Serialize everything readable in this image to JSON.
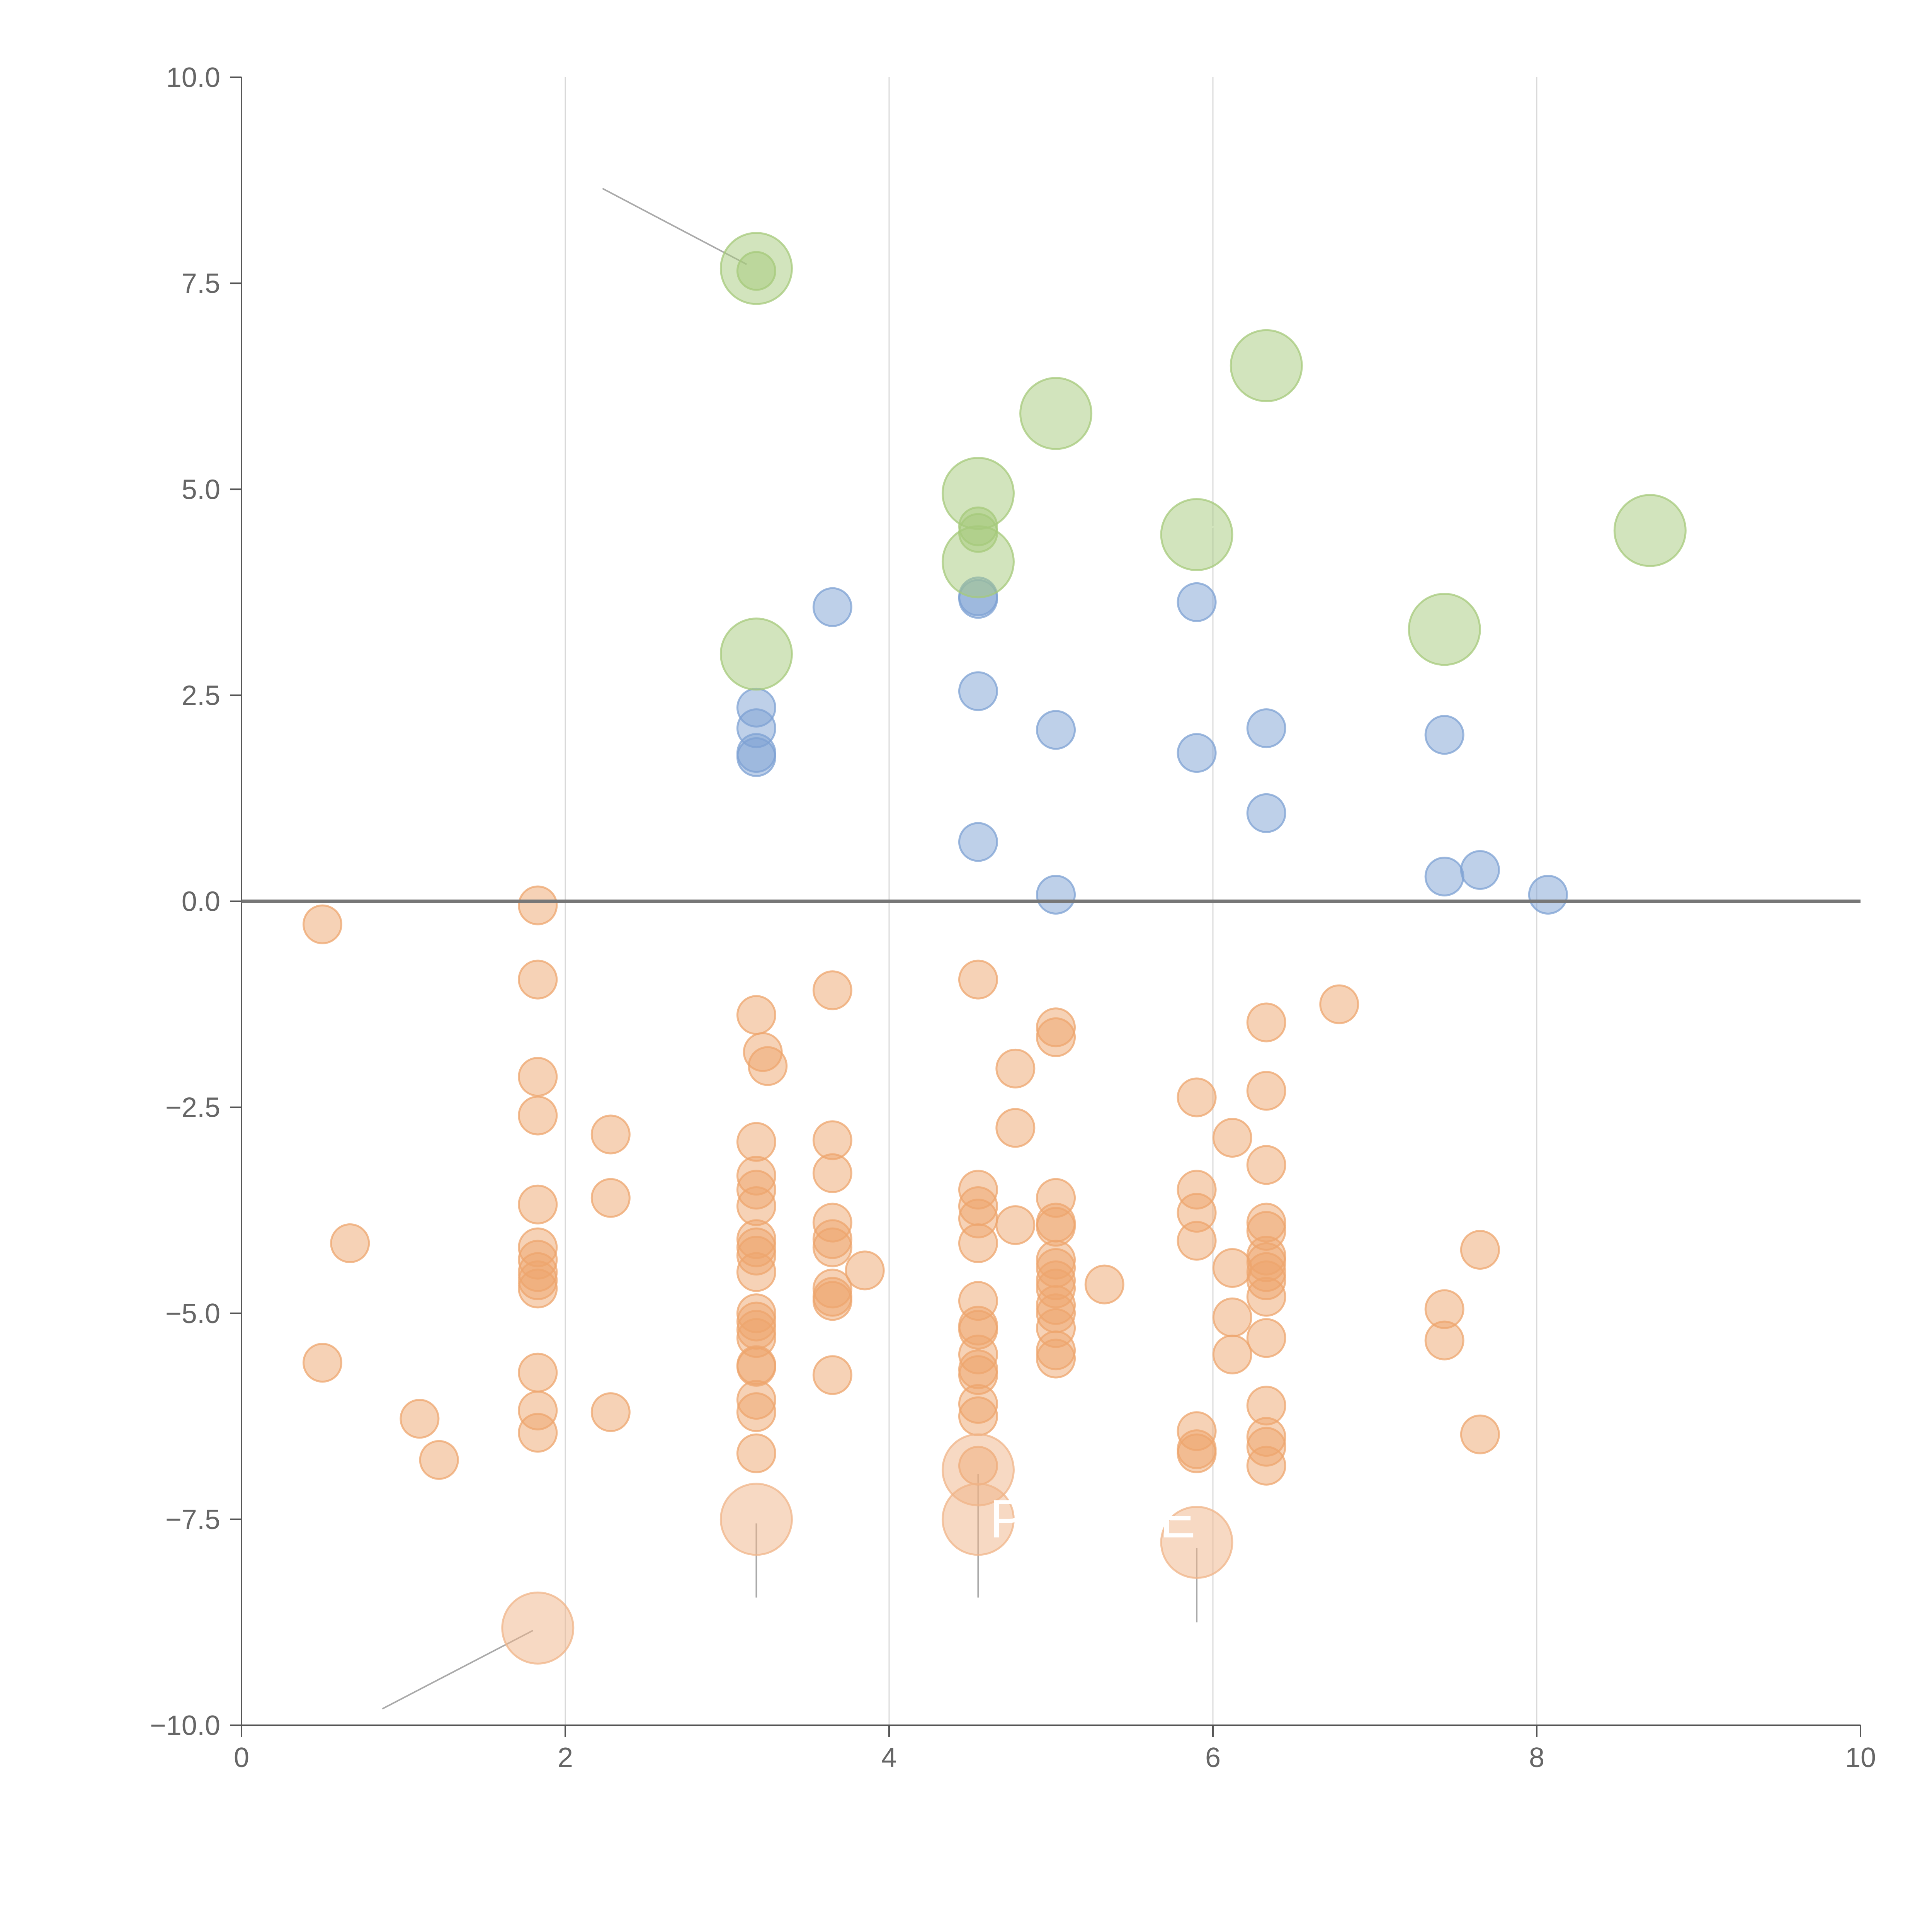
{
  "chart_data": {
    "type": "scatter",
    "title": "",
    "xlabel": "",
    "ylabel": "",
    "xlim": [
      0,
      10
    ],
    "ylim": [
      -10,
      10
    ],
    "grid": "vertical",
    "xticks": [
      0,
      2,
      4,
      6,
      8,
      10
    ],
    "xtick_labels": [
      "0",
      "2",
      "4",
      "6",
      "8",
      "10"
    ],
    "yticks": [
      -10,
      -7.5,
      -5,
      -2.5,
      0,
      2.5,
      5,
      7.5,
      10
    ],
    "ytick_labels": [
      "−10.0",
      "−7.5",
      "−5.0",
      "−2.5",
      "0.0",
      "2.5",
      "5.0",
      "7.5",
      "10.0"
    ],
    "colors": {
      "blue": "#7ea2d3",
      "green": "#a6c97b",
      "orange": "#eea56e",
      "orange_big": "#f0b488",
      "leader_gray": "#aaaaaa",
      "leader_white": "#ffffff"
    },
    "series": [
      {
        "name": "blue",
        "color": "#7ea2d3",
        "size": "small",
        "points": [
          [
            3.18,
            2.35
          ],
          [
            3.18,
            2.1
          ],
          [
            3.18,
            1.8
          ],
          [
            3.18,
            1.75
          ],
          [
            3.65,
            3.57
          ],
          [
            4.55,
            3.7
          ],
          [
            4.55,
            3.67
          ],
          [
            4.55,
            2.55
          ],
          [
            4.55,
            0.72
          ],
          [
            5.03,
            2.08
          ],
          [
            5.03,
            0.08
          ],
          [
            5.9,
            3.63
          ],
          [
            5.9,
            1.8
          ],
          [
            6.33,
            2.1
          ],
          [
            6.33,
            1.07
          ],
          [
            7.43,
            2.02
          ],
          [
            7.43,
            0.3
          ],
          [
            7.65,
            0.38
          ],
          [
            8.07,
            0.08
          ]
        ]
      },
      {
        "name": "green-large",
        "color": "#a6c97b",
        "size": "large",
        "points": [
          [
            3.18,
            7.68
          ],
          [
            3.18,
            3.0
          ],
          [
            4.55,
            4.95
          ],
          [
            4.55,
            4.12
          ],
          [
            5.03,
            5.92
          ],
          [
            5.9,
            4.45
          ],
          [
            6.33,
            6.5
          ],
          [
            7.43,
            3.3
          ],
          [
            8.7,
            4.5
          ]
        ]
      },
      {
        "name": "green-small",
        "color": "#a6c97b",
        "size": "small",
        "points": [
          [
            3.18,
            7.65
          ],
          [
            4.55,
            4.55
          ],
          [
            4.55,
            4.47
          ]
        ]
      },
      {
        "name": "orange",
        "color": "#eea56e",
        "size": "small",
        "points": [
          [
            0.5,
            -0.28
          ],
          [
            0.5,
            -5.6
          ],
          [
            0.67,
            -4.15
          ],
          [
            1.1,
            -6.28
          ],
          [
            1.22,
            -6.78
          ],
          [
            1.83,
            -0.05
          ],
          [
            1.83,
            -0.95
          ],
          [
            1.83,
            -2.13
          ],
          [
            1.83,
            -2.6
          ],
          [
            1.83,
            -3.68
          ],
          [
            1.83,
            -4.2
          ],
          [
            1.83,
            -4.35
          ],
          [
            1.83,
            -4.5
          ],
          [
            1.83,
            -4.6
          ],
          [
            1.83,
            -4.7
          ],
          [
            1.83,
            -5.72
          ],
          [
            1.83,
            -6.18
          ],
          [
            1.83,
            -6.45
          ],
          [
            2.28,
            -2.83
          ],
          [
            2.28,
            -3.6
          ],
          [
            2.28,
            -6.2
          ],
          [
            3.18,
            -1.38
          ],
          [
            3.18,
            -2.92
          ],
          [
            3.18,
            -3.33
          ],
          [
            3.18,
            -3.5
          ],
          [
            3.18,
            -3.7
          ],
          [
            3.18,
            -4.1
          ],
          [
            3.18,
            -4.2
          ],
          [
            3.18,
            -4.3
          ],
          [
            3.18,
            -4.5
          ],
          [
            3.18,
            -5.0
          ],
          [
            3.18,
            -5.1
          ],
          [
            3.18,
            -5.2
          ],
          [
            3.18,
            -5.3
          ],
          [
            3.18,
            -5.63
          ],
          [
            3.18,
            -5.65
          ],
          [
            3.18,
            -6.05
          ],
          [
            3.18,
            -6.2
          ],
          [
            3.18,
            -6.7
          ],
          [
            3.22,
            -1.83
          ],
          [
            3.25,
            -2.0
          ],
          [
            3.65,
            -1.08
          ],
          [
            3.65,
            -2.9
          ],
          [
            3.65,
            -3.3
          ],
          [
            3.65,
            -3.9
          ],
          [
            3.65,
            -4.1
          ],
          [
            3.65,
            -4.2
          ],
          [
            3.65,
            -4.7
          ],
          [
            3.65,
            -4.8
          ],
          [
            3.65,
            -4.85
          ],
          [
            3.65,
            -5.75
          ],
          [
            3.85,
            -4.48
          ],
          [
            4.55,
            -0.95
          ],
          [
            4.55,
            -3.5
          ],
          [
            4.55,
            -3.7
          ],
          [
            4.55,
            -3.85
          ],
          [
            4.55,
            -4.15
          ],
          [
            4.55,
            -4.85
          ],
          [
            4.55,
            -5.15
          ],
          [
            4.55,
            -5.2
          ],
          [
            4.55,
            -5.5
          ],
          [
            4.55,
            -5.68
          ],
          [
            4.55,
            -5.75
          ],
          [
            4.55,
            -6.1
          ],
          [
            4.55,
            -6.25
          ],
          [
            4.55,
            -6.85
          ],
          [
            4.78,
            -2.03
          ],
          [
            4.78,
            -2.75
          ],
          [
            4.78,
            -3.93
          ],
          [
            5.03,
            -1.53
          ],
          [
            5.03,
            -1.65
          ],
          [
            5.03,
            -3.6
          ],
          [
            5.03,
            -3.9
          ],
          [
            5.03,
            -3.95
          ],
          [
            5.03,
            -4.35
          ],
          [
            5.03,
            -4.45
          ],
          [
            5.03,
            -4.6
          ],
          [
            5.03,
            -4.7
          ],
          [
            5.03,
            -4.9
          ],
          [
            5.03,
            -5.0
          ],
          [
            5.03,
            -5.18
          ],
          [
            5.03,
            -5.45
          ],
          [
            5.03,
            -5.55
          ],
          [
            5.33,
            -4.65
          ],
          [
            5.9,
            -2.38
          ],
          [
            5.9,
            -3.5
          ],
          [
            5.9,
            -3.78
          ],
          [
            5.9,
            -4.12
          ],
          [
            5.9,
            -6.43
          ],
          [
            5.9,
            -6.65
          ],
          [
            5.9,
            -6.7
          ],
          [
            6.12,
            -2.87
          ],
          [
            6.12,
            -4.45
          ],
          [
            6.12,
            -5.05
          ],
          [
            6.12,
            -5.5
          ],
          [
            6.33,
            -1.47
          ],
          [
            6.33,
            -2.3
          ],
          [
            6.33,
            -3.2
          ],
          [
            6.33,
            -3.9
          ],
          [
            6.33,
            -4.0
          ],
          [
            6.33,
            -4.3
          ],
          [
            6.33,
            -4.38
          ],
          [
            6.33,
            -4.5
          ],
          [
            6.33,
            -4.6
          ],
          [
            6.33,
            -4.8
          ],
          [
            6.33,
            -5.3
          ],
          [
            6.33,
            -6.12
          ],
          [
            6.33,
            -6.5
          ],
          [
            6.33,
            -6.62
          ],
          [
            6.33,
            -6.85
          ],
          [
            6.78,
            -1.25
          ],
          [
            7.43,
            -4.95
          ],
          [
            7.43,
            -5.33
          ],
          [
            7.65,
            -4.23
          ],
          [
            7.65,
            -6.47
          ]
        ]
      },
      {
        "name": "orange-large",
        "color": "#f0b488",
        "size": "large",
        "points": [
          [
            1.83,
            -8.82
          ],
          [
            3.18,
            -7.5
          ],
          [
            4.55,
            -6.9
          ],
          [
            4.55,
            -7.5
          ],
          [
            5.9,
            -7.78
          ]
        ]
      }
    ],
    "leader_lines": [
      {
        "color": "gray",
        "from": [
          2.23,
          8.65
        ],
        "to": [
          3.12,
          7.73
        ]
      },
      {
        "color": "gray",
        "from": [
          0.87,
          -9.8
        ],
        "to": [
          1.8,
          -8.85
        ]
      },
      {
        "color": "gray",
        "from": [
          3.18,
          -7.55
        ],
        "to": [
          3.18,
          -8.45
        ]
      },
      {
        "color": "gray",
        "from": [
          4.55,
          -6.95
        ],
        "to": [
          4.55,
          -8.45
        ]
      },
      {
        "color": "gray",
        "from": [
          5.9,
          -7.85
        ],
        "to": [
          5.9,
          -8.75
        ]
      },
      {
        "color": "white",
        "from": [
          5.03,
          6.35
        ],
        "to": [
          5.03,
          6.0
        ]
      },
      {
        "color": "white",
        "from": [
          4.62,
          4.95
        ],
        "to": [
          4.8,
          5.0
        ]
      },
      {
        "color": "white",
        "from": [
          4.62,
          4.1
        ],
        "to": [
          4.75,
          3.85
        ]
      },
      {
        "color": "white",
        "from": [
          5.93,
          4.48
        ],
        "to": [
          6.12,
          4.65
        ]
      },
      {
        "color": "white",
        "from": [
          3.23,
          3.0
        ],
        "to": [
          3.5,
          2.9
        ]
      },
      {
        "color": "white",
        "from": [
          7.48,
          3.3
        ],
        "to": [
          7.75,
          3.35
        ]
      },
      {
        "color": "white",
        "from": [
          8.65,
          4.88
        ],
        "to": [
          8.7,
          4.55
        ]
      }
    ],
    "annotations": [
      {
        "text": "P",
        "x": 4.62,
        "y": -7.72
      },
      {
        "text": "E",
        "x": 5.67,
        "y": -7.72
      }
    ]
  }
}
